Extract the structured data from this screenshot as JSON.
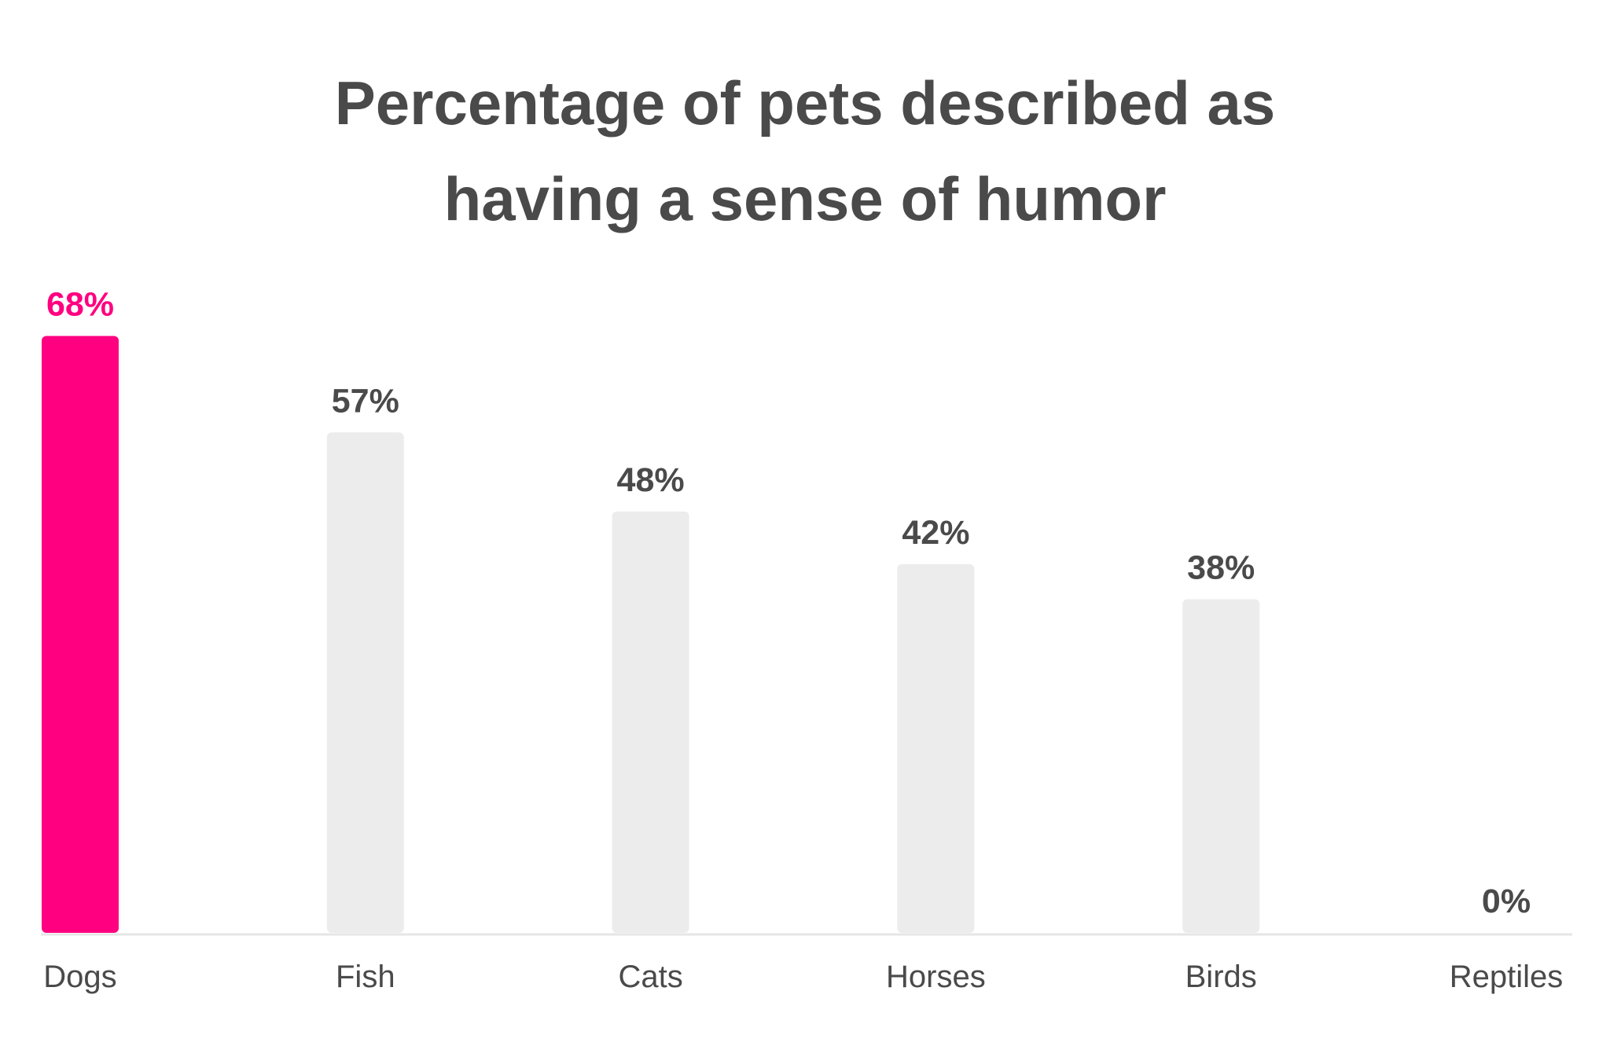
{
  "chart_data": {
    "type": "bar",
    "title": "Percentage of pets described as having a sense of humor",
    "categories": [
      "Dogs",
      "Fish",
      "Cats",
      "Horses",
      "Birds",
      "Reptiles"
    ],
    "values": [
      68,
      57,
      48,
      42,
      38,
      0
    ],
    "value_labels": [
      "68%",
      "57%",
      "48%",
      "42%",
      "38%",
      "0%"
    ],
    "colors": [
      "#ff0080",
      "#ececec",
      "#ececec",
      "#ececec",
      "#ececec",
      "#ececec"
    ],
    "label_colors": [
      "#ff0080",
      "#4a4a4a",
      "#4a4a4a",
      "#4a4a4a",
      "#4a4a4a",
      "#4a4a4a"
    ]
  }
}
